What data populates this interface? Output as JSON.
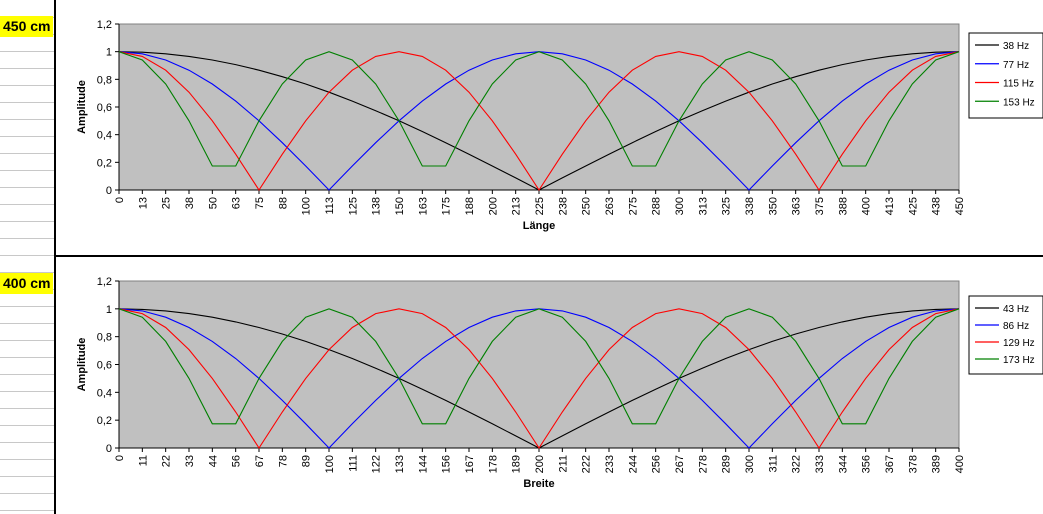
{
  "sheet_labels": [
    "450 cm",
    "400 cm"
  ],
  "chart_data": [
    {
      "type": "line",
      "title": "",
      "xlabel": "Länge",
      "ylabel": "Amplitude",
      "ylim": [
        0,
        1.2
      ],
      "yticks": [
        "0",
        "0,2",
        "0,4",
        "0,6",
        "0,8",
        "1",
        "1,2"
      ],
      "xlim": [
        0,
        450
      ],
      "xticks": [
        "0",
        "13",
        "25",
        "38",
        "50",
        "63",
        "75",
        "88",
        "100",
        "113",
        "125",
        "138",
        "150",
        "163",
        "175",
        "188",
        "200",
        "213",
        "225",
        "238",
        "250",
        "263",
        "275",
        "288",
        "300",
        "313",
        "325",
        "338",
        "350",
        "363",
        "375",
        "388",
        "400",
        "413",
        "425",
        "438",
        "450"
      ],
      "legend_position": "right",
      "plot_background": "#c0c0c0",
      "series": [
        {
          "name": "38 Hz",
          "mode": 1,
          "color": "#000000"
        },
        {
          "name": "77 Hz",
          "mode": 2,
          "color": "#0000ff"
        },
        {
          "name": "115 Hz",
          "mode": 3,
          "color": "#ff0000"
        },
        {
          "name": "153 Hz",
          "mode": 4,
          "color": "#008000"
        }
      ]
    },
    {
      "type": "line",
      "title": "",
      "xlabel": "Breite",
      "ylabel": "Amplitude",
      "ylim": [
        0,
        1.2
      ],
      "yticks": [
        "0",
        "0,2",
        "0,4",
        "0,6",
        "0,8",
        "1",
        "1,2"
      ],
      "xlim": [
        0,
        400
      ],
      "xticks": [
        "0",
        "11",
        "22",
        "33",
        "44",
        "56",
        "67",
        "78",
        "89",
        "100",
        "111",
        "122",
        "133",
        "144",
        "156",
        "167",
        "178",
        "189",
        "200",
        "211",
        "222",
        "233",
        "244",
        "256",
        "267",
        "278",
        "289",
        "300",
        "311",
        "322",
        "333",
        "344",
        "356",
        "367",
        "378",
        "389",
        "400"
      ],
      "legend_position": "right",
      "plot_background": "#c0c0c0",
      "series": [
        {
          "name": "43 Hz",
          "mode": 1,
          "color": "#000000"
        },
        {
          "name": "86 Hz",
          "mode": 2,
          "color": "#0000ff"
        },
        {
          "name": "129 Hz",
          "mode": 3,
          "color": "#ff0000"
        },
        {
          "name": "173 Hz",
          "mode": 4,
          "color": "#008000"
        }
      ]
    }
  ]
}
